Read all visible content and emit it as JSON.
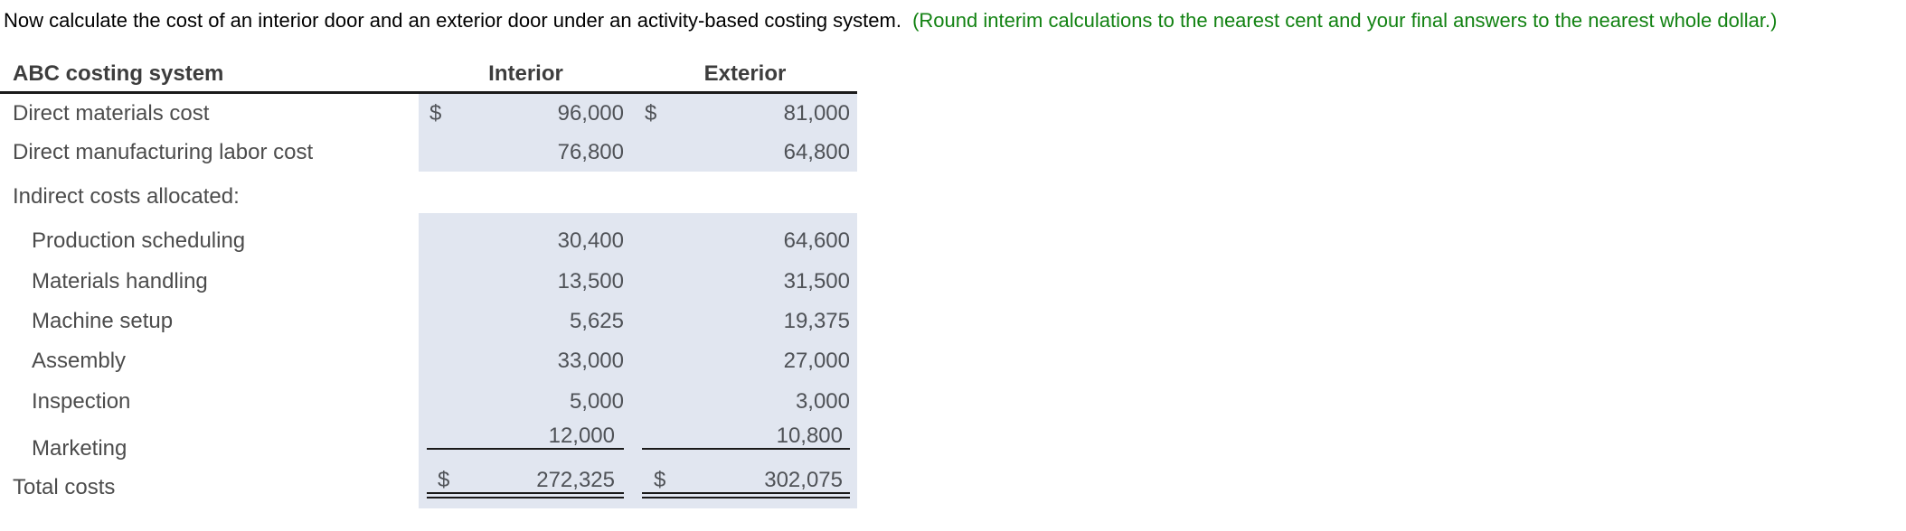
{
  "instruction": {
    "text": "Now calculate the cost of an interior door and an exterior door under an activity-based costing system.",
    "note": "(Round interim calculations to the nearest cent and your final answers to the nearest whole dollar.)"
  },
  "table": {
    "title": "ABC costing system",
    "columns": [
      "Interior",
      "Exterior"
    ],
    "currency": "$",
    "rows": [
      {
        "label": "Direct materials cost",
        "indent": false,
        "dollar": true,
        "shaded": true,
        "underline": null,
        "interior": "96,000",
        "exterior": "81,000"
      },
      {
        "label": "Direct manufacturing labor cost",
        "indent": false,
        "dollar": false,
        "shaded": true,
        "underline": null,
        "interior": "76,800",
        "exterior": "64,800"
      },
      {
        "label": "Indirect costs allocated:",
        "indent": false,
        "dollar": false,
        "shaded": false,
        "underline": null,
        "interior": "",
        "exterior": ""
      },
      {
        "label": "Production scheduling",
        "indent": true,
        "dollar": false,
        "shaded": true,
        "underline": null,
        "interior": "30,400",
        "exterior": "64,600"
      },
      {
        "label": "Materials handling",
        "indent": true,
        "dollar": false,
        "shaded": true,
        "underline": null,
        "interior": "13,500",
        "exterior": "31,500"
      },
      {
        "label": "Machine setup",
        "indent": true,
        "dollar": false,
        "shaded": true,
        "underline": null,
        "interior": "5,625",
        "exterior": "19,375"
      },
      {
        "label": "Assembly",
        "indent": true,
        "dollar": false,
        "shaded": true,
        "underline": null,
        "interior": "33,000",
        "exterior": "27,000"
      },
      {
        "label": "Inspection",
        "indent": true,
        "dollar": false,
        "shaded": true,
        "underline": null,
        "interior": "5,000",
        "exterior": "3,000"
      },
      {
        "label": "Marketing",
        "indent": true,
        "dollar": false,
        "shaded": true,
        "underline": "single",
        "interior": "12,000",
        "exterior": "10,800"
      },
      {
        "label": "Total costs",
        "indent": false,
        "dollar": true,
        "shaded": true,
        "underline": "double",
        "interior": "272,325",
        "exterior": "302,075"
      }
    ]
  },
  "colors": {
    "note_green": "#128212",
    "cell_shade": "#e1e6f0",
    "rule_black": "#1a1a1a",
    "label_gray": "#4c4c4c",
    "value_gray": "#4f5257"
  }
}
